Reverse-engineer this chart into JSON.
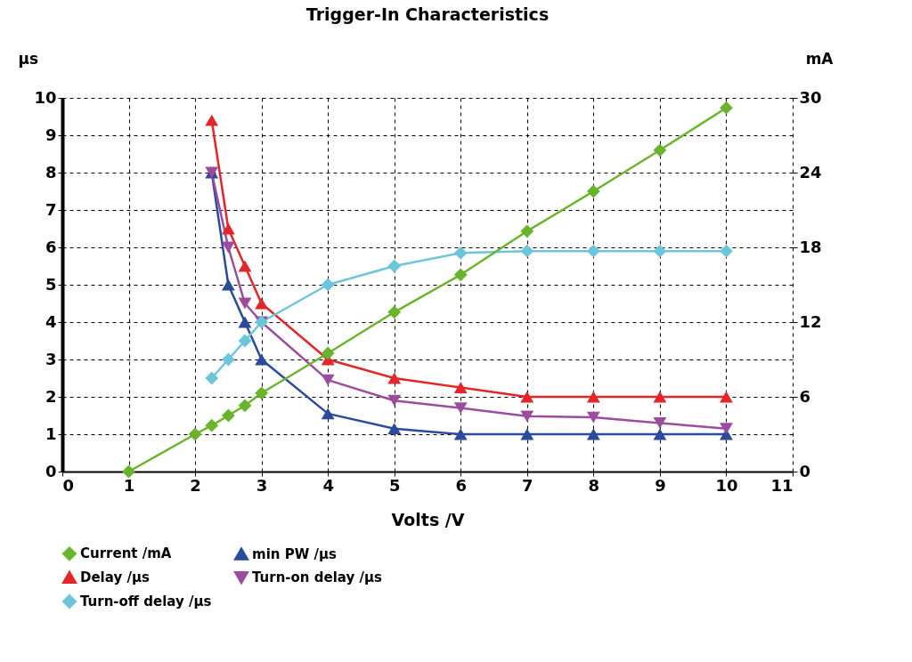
{
  "chart_data": {
    "type": "line",
    "title": "Trigger-In Characteristics",
    "xlabel": "Volts /V",
    "ylabel": "μs",
    "y2label": "mA",
    "x": [
      2.25,
      2.5,
      2.75,
      3,
      4,
      5,
      6,
      7,
      8,
      9,
      10
    ],
    "xlim": [
      0,
      11
    ],
    "xticks": [
      0,
      1,
      2,
      3,
      4,
      5,
      6,
      7,
      8,
      9,
      10,
      11
    ],
    "ylim": [
      0,
      10
    ],
    "yticks": [
      0,
      1,
      2,
      3,
      4,
      5,
      6,
      7,
      8,
      9,
      10
    ],
    "y2lim": [
      0,
      30
    ],
    "y2ticks": [
      0,
      6,
      12,
      18,
      24,
      30
    ],
    "grid": true,
    "legend": "bottom",
    "line_style": "solid",
    "series": [
      {
        "name": "Current /mA",
        "color": "#6ab42d",
        "marker": "diamond",
        "axis": "y2",
        "x": [
          1,
          2,
          2.25,
          2.5,
          2.75,
          3,
          4,
          5,
          6,
          7,
          8,
          9,
          10
        ],
        "values": [
          0,
          3.0,
          3.7,
          4.5,
          5.3,
          6.3,
          9.5,
          12.8,
          15.8,
          19.3,
          22.5,
          25.8,
          29.2
        ]
      },
      {
        "name": "min PW /μs",
        "color": "#2a4a9c",
        "marker": "triangle",
        "values": [
          8.0,
          5.0,
          4.0,
          3.0,
          1.55,
          1.15,
          1.0,
          1.0,
          1.0,
          1.0,
          1.0
        ]
      },
      {
        "name": "Delay /μs",
        "color": "#e3262a",
        "marker": "triangle",
        "values": [
          9.4,
          6.5,
          5.5,
          4.5,
          3.0,
          2.5,
          2.25,
          2.0,
          2.0,
          2.0,
          2.0
        ]
      },
      {
        "name": "Turn-on delay /μs",
        "color": "#9b4c9f",
        "marker": "triangle-down",
        "values": [
          8.0,
          6.0,
          4.5,
          4.0,
          2.45,
          1.9,
          1.7,
          1.48,
          1.45,
          1.3,
          1.15
        ]
      },
      {
        "name": "Turn-off delay /μs",
        "color": "#6cc5d9",
        "marker": "diamond",
        "values": [
          2.5,
          3.0,
          3.5,
          4.0,
          5.0,
          5.5,
          5.85,
          5.9,
          5.9,
          5.9,
          5.9
        ]
      }
    ]
  }
}
